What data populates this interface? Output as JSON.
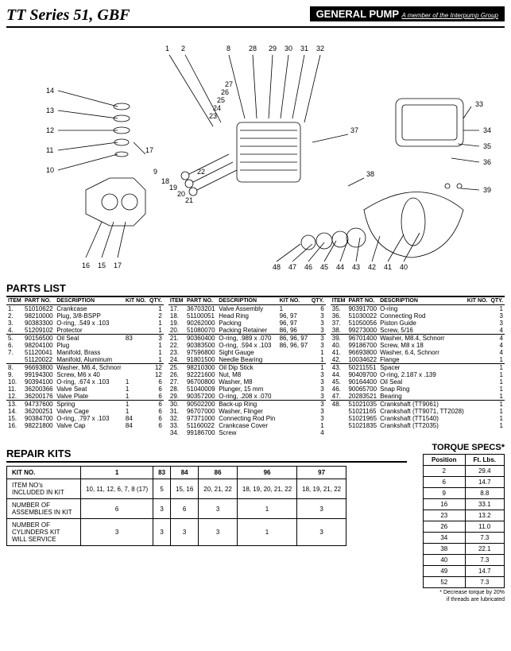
{
  "header": {
    "title": "TT Series 51, GBF",
    "brand": "GENERAL PUMP",
    "brand_sub": "A member of the Interpump Group"
  },
  "diagram": {
    "callouts_top": [
      "1",
      "2",
      "8",
      "28",
      "29",
      "30",
      "31",
      "32"
    ],
    "callouts_left": [
      "14",
      "13",
      "12",
      "11",
      "10"
    ],
    "callouts_bottom_left": [
      "16",
      "15",
      "17"
    ],
    "callouts_mid": [
      "9",
      "18",
      "19",
      "20",
      "21",
      "22",
      "23",
      "24",
      "25",
      "26",
      "27"
    ],
    "callouts_right": [
      "33",
      "34",
      "35",
      "36",
      "37",
      "39",
      "38"
    ],
    "callouts_bottom_right": [
      "48",
      "47",
      "46",
      "45",
      "44",
      "43",
      "42",
      "41",
      "40"
    ],
    "label_17": "17"
  },
  "parts_list": {
    "title": "PARTS LIST",
    "columns": [
      "ITEM",
      "PART NO.",
      "DESCRIPTION",
      "KIT NO.",
      "QTY."
    ],
    "col1": [
      {
        "i": "1.",
        "p": "51010622",
        "d": "Crankcase",
        "k": "",
        "q": "1"
      },
      {
        "i": "2.",
        "p": "98210000",
        "d": "Plug, 3/8-BSPP",
        "k": "",
        "q": "2"
      },
      {
        "i": "3.",
        "p": "90383300",
        "d": "O-ring, .549 x .103",
        "k": "",
        "q": "1"
      },
      {
        "i": "4.",
        "p": "51209102",
        "d": "Protector",
        "k": "",
        "q": "1",
        "sep": true
      },
      {
        "i": "5.",
        "p": "90156500",
        "d": "Oil Seal",
        "k": "83",
        "q": "3"
      },
      {
        "i": "6.",
        "p": "98204100",
        "d": "Plug",
        "k": "",
        "q": "1"
      },
      {
        "i": "7.",
        "p": "51120041",
        "d": "Manifold, Brass",
        "k": "",
        "q": "1"
      },
      {
        "i": "",
        "p": "51120022",
        "d": "Manifold, Aluminum",
        "k": "",
        "q": "1",
        "sep": true
      },
      {
        "i": "8.",
        "p": "96693800",
        "d": "Washer, M6.4, Schnorr",
        "k": "",
        "q": "12"
      },
      {
        "i": "9.",
        "p": "99194300",
        "d": "Screw, M6 x 40",
        "k": "",
        "q": "12"
      },
      {
        "i": "10.",
        "p": "90394100",
        "d": "O-ring, .674 x .103",
        "k": "1",
        "q": "6"
      },
      {
        "i": "11.",
        "p": "36200366",
        "d": "Valve Seat",
        "k": "1",
        "q": "6"
      },
      {
        "i": "12.",
        "p": "36200176",
        "d": "Valve Plate",
        "k": "1",
        "q": "6",
        "sep": true
      },
      {
        "i": "13.",
        "p": "94737600",
        "d": "Spring",
        "k": "1",
        "q": "6"
      },
      {
        "i": "14.",
        "p": "36200251",
        "d": "Valve Cage",
        "k": "1",
        "q": "6"
      },
      {
        "i": "15.",
        "p": "90384700",
        "d": "O-ring, .797 x .103",
        "k": "84",
        "q": "6"
      },
      {
        "i": "16.",
        "p": "98221800",
        "d": "Valve Cap",
        "k": "84",
        "q": "6"
      }
    ],
    "col2": [
      {
        "i": "17.",
        "p": "36703201",
        "d": "Valve Assembly",
        "k": "1",
        "q": "6"
      },
      {
        "i": "18.",
        "p": "51100051",
        "d": "Head Ring",
        "k": "96, 97",
        "q": "3"
      },
      {
        "i": "19.",
        "p": "90262000",
        "d": "Packing",
        "k": "96, 97",
        "q": "3"
      },
      {
        "i": "20.",
        "p": "51080070",
        "d": "Packing Retainer",
        "k": "86, 96",
        "q": "3",
        "sep": true
      },
      {
        "i": "21.",
        "p": "90360400",
        "d": "O-ring, .989 x .070",
        "k": "86, 96, 97",
        "q": "3"
      },
      {
        "i": "22.",
        "p": "90383500",
        "d": "O-ring, .594 x .103",
        "k": "86, 96, 97",
        "q": "3"
      },
      {
        "i": "23.",
        "p": "97596800",
        "d": "Sight Gauge",
        "k": "",
        "q": "1"
      },
      {
        "i": "24.",
        "p": "91801500",
        "d": "Needle Bearing",
        "k": "",
        "q": "1",
        "sep": true
      },
      {
        "i": "25.",
        "p": "98210300",
        "d": "Oil Dip Stick",
        "k": "",
        "q": "1"
      },
      {
        "i": "26.",
        "p": "92221600",
        "d": "Nut, M8",
        "k": "",
        "q": "3"
      },
      {
        "i": "27.",
        "p": "96700800",
        "d": "Washer, M8",
        "k": "",
        "q": "3"
      },
      {
        "i": "28.",
        "p": "51040009",
        "d": "Plunger, 15 mm",
        "k": "",
        "q": "3"
      },
      {
        "i": "29.",
        "p": "90357200",
        "d": "O-ring, .208 x .070",
        "k": "",
        "q": "3",
        "sep": true
      },
      {
        "i": "30.",
        "p": "90502200",
        "d": "Back-up Ring",
        "k": "",
        "q": "3"
      },
      {
        "i": "31.",
        "p": "96707000",
        "d": "Washer, Flinger",
        "k": "",
        "q": "3"
      },
      {
        "i": "32.",
        "p": "97371000",
        "d": "Connecting Rod Pin",
        "k": "",
        "q": "3"
      },
      {
        "i": "33.",
        "p": "51160022",
        "d": "Crankcase Cover",
        "k": "",
        "q": "1"
      },
      {
        "i": "34.",
        "p": "99186700",
        "d": "Screw",
        "k": "",
        "q": "4"
      }
    ],
    "col3": [
      {
        "i": "35.",
        "p": "90391700",
        "d": "O-ring",
        "k": "",
        "q": "1"
      },
      {
        "i": "36.",
        "p": "51030022",
        "d": "Connecting Rod",
        "k": "",
        "q": "3"
      },
      {
        "i": "37.",
        "p": "51050056",
        "d": "Piston Guide",
        "k": "",
        "q": "3"
      },
      {
        "i": "38.",
        "p": "99273000",
        "d": "Screw, 5/16",
        "k": "",
        "q": "4",
        "sep": true
      },
      {
        "i": "39.",
        "p": "96701400",
        "d": "Washer, M8.4, Schnorr",
        "k": "",
        "q": "4"
      },
      {
        "i": "40.",
        "p": "99186700",
        "d": "Screw, M8 x 18",
        "k": "",
        "q": "4"
      },
      {
        "i": "41.",
        "p": "96693800",
        "d": "Washer, 6.4, Schnorr",
        "k": "",
        "q": "4"
      },
      {
        "i": "42.",
        "p": "10034622",
        "d": "Flange",
        "k": "",
        "q": "1",
        "sep": true
      },
      {
        "i": "43.",
        "p": "50211551",
        "d": "Spacer",
        "k": "",
        "q": "1"
      },
      {
        "i": "44.",
        "p": "90409700",
        "d": "O-ring, 2.187 x .139",
        "k": "",
        "q": "1"
      },
      {
        "i": "45.",
        "p": "90164400",
        "d": "Oil Seal",
        "k": "",
        "q": "1"
      },
      {
        "i": "46.",
        "p": "90065700",
        "d": "Snap Ring",
        "k": "",
        "q": "1"
      },
      {
        "i": "47.",
        "p": "20283521",
        "d": "Bearing",
        "k": "",
        "q": "1",
        "sep": true
      },
      {
        "i": "48.",
        "p": "51021035",
        "d": "Crankshaft (TT9061)",
        "k": "",
        "q": "1"
      },
      {
        "i": "",
        "p": "51021165",
        "d": "Crankshaft (TT9071, TT2028)",
        "k": "",
        "q": "1"
      },
      {
        "i": "",
        "p": "51021965",
        "d": "Crankshaft (TT1540)",
        "k": "",
        "q": "1"
      },
      {
        "i": "",
        "p": "51021835",
        "d": "Crankshaft (TT2035)",
        "k": "",
        "q": "1"
      }
    ]
  },
  "repair_kits": {
    "title": "REPAIR KITS",
    "headers": [
      "KIT NO.",
      "1",
      "83",
      "84",
      "86",
      "96",
      "97"
    ],
    "rows": [
      {
        "label": "ITEM NO's INCLUDED IN KIT",
        "cells": [
          "10, 11, 12, 6, 7, 8 (17)",
          "5",
          "15, 16",
          "20, 21, 22",
          "18, 19, 20, 21, 22",
          "18, 19, 21, 22"
        ]
      },
      {
        "label": "NUMBER OF ASSEMBLIES IN KIT",
        "cells": [
          "6",
          "3",
          "6",
          "3",
          "1",
          "3"
        ]
      },
      {
        "label": "NUMBER OF CYLINDERS KIT WILL SERVICE",
        "cells": [
          "3",
          "3",
          "3",
          "3",
          "1",
          "3"
        ]
      }
    ]
  },
  "torque": {
    "title": "TORQUE SPECS*",
    "headers": [
      "Position",
      "Ft. Lbs."
    ],
    "rows": [
      [
        "2",
        "29.4"
      ],
      [
        "6",
        "14.7"
      ],
      [
        "9",
        "8.8"
      ],
      [
        "16",
        "33.1"
      ],
      [
        "23",
        "13.2"
      ],
      [
        "26",
        "11.0"
      ],
      [
        "34",
        "7.3"
      ],
      [
        "38",
        "22.1"
      ],
      [
        "40",
        "7.3"
      ],
      [
        "49",
        "14.7"
      ],
      [
        "52",
        "7.3"
      ]
    ],
    "note1": "* Decrease torque by 20%",
    "note2": "if threads are lubricated"
  }
}
